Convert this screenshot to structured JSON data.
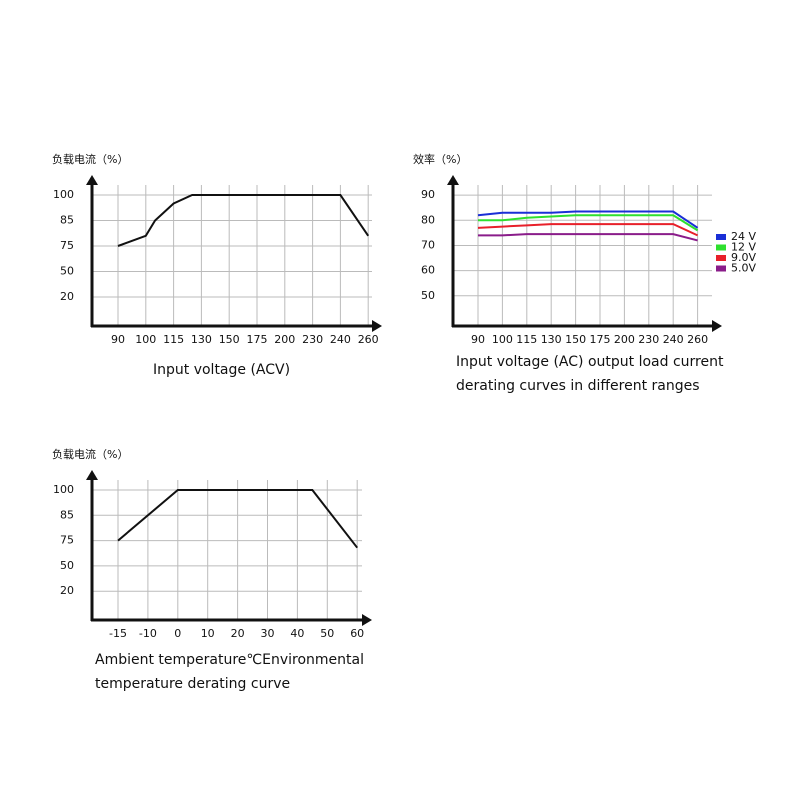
{
  "chart_data": [
    {
      "type": "line",
      "title": "负载电流（%）",
      "caption": "Input voltage (ACV)",
      "xticks": [
        90,
        100,
        115,
        130,
        150,
        175,
        200,
        230,
        240,
        260
      ],
      "yticks": [
        100,
        85,
        75,
        50,
        20
      ],
      "grid": true,
      "x": [
        90,
        100,
        105,
        115,
        125,
        150,
        240,
        260
      ],
      "values": [
        75,
        79,
        85,
        95,
        100,
        100,
        100,
        79
      ],
      "color": "#111111"
    },
    {
      "type": "line",
      "title": "效率（%）",
      "caption": "Input voltage (AC) output load current derating curves in different ranges",
      "xticks": [
        90,
        100,
        115,
        130,
        150,
        175,
        200,
        230,
        240,
        260
      ],
      "ylim": [
        38,
        98
      ],
      "yticks": [
        90,
        80,
        70,
        60,
        50
      ],
      "grid": true,
      "legend": "right",
      "x": [
        90,
        100,
        115,
        130,
        150,
        175,
        200,
        230,
        240,
        260
      ],
      "series": [
        {
          "name": "24 V",
          "color": "#1a2fd6",
          "values": [
            82,
            83,
            83,
            83,
            83.5,
            83.5,
            83.5,
            83.5,
            83.5,
            77
          ]
        },
        {
          "name": "12 V",
          "color": "#2ee02e",
          "values": [
            80,
            80,
            81,
            81.5,
            82,
            82,
            82,
            82,
            82,
            76
          ]
        },
        {
          "name": "9.0V",
          "color": "#e8202a",
          "values": [
            77,
            77.5,
            78,
            78.5,
            78.5,
            78.5,
            78.5,
            78.5,
            78.5,
            74
          ]
        },
        {
          "name": "5.0V",
          "color": "#8a1c8a",
          "values": [
            74,
            74,
            74.5,
            74.5,
            74.5,
            74.5,
            74.5,
            74.5,
            74.5,
            72
          ]
        }
      ]
    },
    {
      "type": "line",
      "title": "负载电流（%）",
      "caption": "Ambient temperature℃Environmental temperature derating curve",
      "xticks": [
        -15,
        -10,
        0,
        10,
        20,
        30,
        40,
        50,
        60
      ],
      "yticks": [
        100,
        85,
        75,
        50,
        20
      ],
      "grid": true,
      "x": [
        -15,
        0,
        45,
        60
      ],
      "values": [
        75,
        100,
        100,
        68
      ],
      "color": "#111111"
    }
  ]
}
